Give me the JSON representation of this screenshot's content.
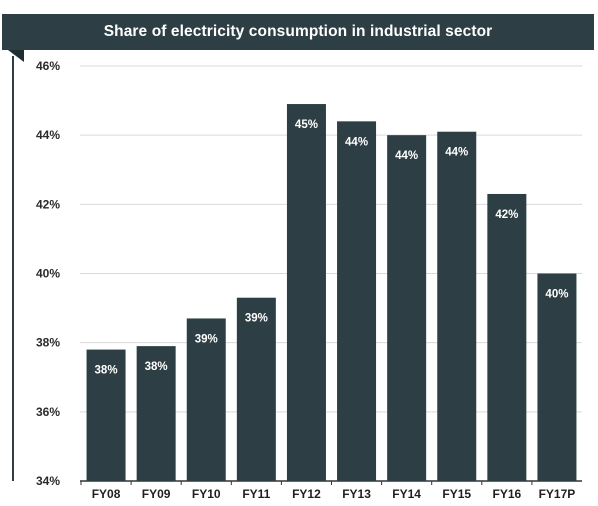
{
  "chart_data": {
    "type": "bar",
    "title": "Share of electricity consumption in industrial sector",
    "xlabel": "",
    "ylabel": "",
    "categories": [
      "FY08",
      "FY09",
      "FY10",
      "FY11",
      "FY12",
      "FY13",
      "FY14",
      "FY15",
      "FY16",
      "FY17P"
    ],
    "values": [
      37.8,
      37.9,
      38.7,
      39.3,
      44.9,
      44.4,
      44.0,
      44.1,
      42.3,
      40.0
    ],
    "data_labels": [
      "38%",
      "38%",
      "39%",
      "39%",
      "45%",
      "44%",
      "44%",
      "44%",
      "42%",
      "40%"
    ],
    "ylim": [
      34,
      46
    ],
    "y_ticks": [
      34,
      36,
      38,
      40,
      42,
      44,
      46
    ],
    "y_tick_labels": [
      "34%",
      "36%",
      "38%",
      "40%",
      "42%",
      "44%",
      "46%"
    ],
    "grid": true,
    "legend": "none",
    "colors": {
      "bar": "#2d3f44",
      "banner": "#2d3f44",
      "grid": "#d9d9d9",
      "axis": "#2d3f44"
    }
  }
}
